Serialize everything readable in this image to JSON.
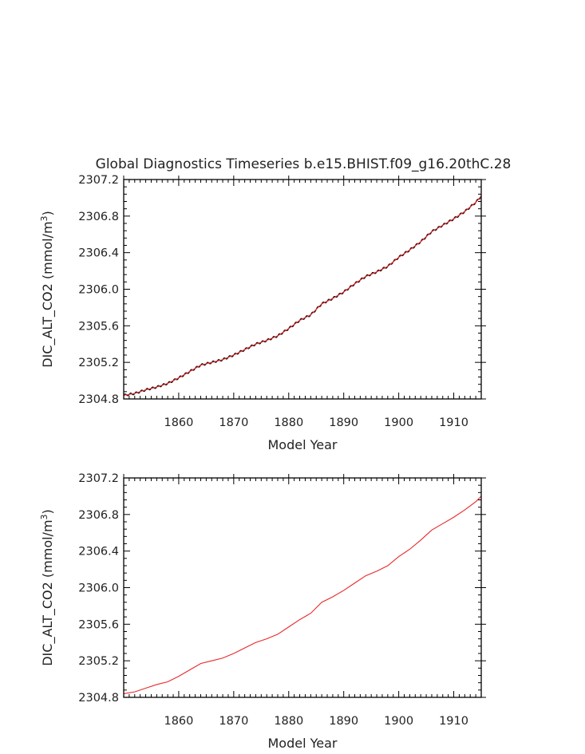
{
  "figure_title": "Global Diagnostics Timeseries b.e15.BHIST.f09_g16.20thC.28",
  "chart_data": [
    {
      "type": "line",
      "title": "Global Diagnostics Timeseries b.e15.BHIST.f09_g16.20thC.28",
      "xlabel": "Model Year",
      "ylabel": "DIC_ALT_CO2 (mmol/m3)",
      "ylabel_prefix": "DIC_ALT_CO2 (mmol/m",
      "ylabel_superscript": "3",
      "ylabel_suffix": ")",
      "xlim": [
        1850,
        1915
      ],
      "ylim": [
        2304.8,
        2307.2
      ],
      "x_ticks": [
        1860,
        1870,
        1880,
        1890,
        1900,
        1910
      ],
      "x_tick_labels": [
        "1860",
        "1870",
        "1880",
        "1890",
        "1900",
        "1910"
      ],
      "y_ticks": [
        2304.8,
        2305.2,
        2305.6,
        2306.0,
        2306.4,
        2306.8,
        2307.2
      ],
      "y_tick_labels": [
        "2304.8",
        "2305.2",
        "2305.6",
        "2306.0",
        "2306.4",
        "2306.8",
        "2307.2"
      ],
      "grid": false,
      "series": [
        {
          "color": "#000000",
          "style": "monthly",
          "x": [
            1850,
            1852,
            1854,
            1856,
            1858,
            1860,
            1862,
            1864,
            1866,
            1868,
            1870,
            1872,
            1874,
            1876,
            1878,
            1880,
            1882,
            1884,
            1886,
            1888,
            1890,
            1892,
            1894,
            1896,
            1898,
            1900,
            1902,
            1904,
            1906,
            1908,
            1910,
            1912,
            1914,
            1915
          ],
          "y": [
            2304.84,
            2304.86,
            2304.9,
            2304.93,
            2304.97,
            2305.03,
            2305.1,
            2305.17,
            2305.2,
            2305.23,
            2305.28,
            2305.34,
            2305.4,
            2305.44,
            2305.49,
            2305.57,
            2305.66,
            2305.72,
            2305.84,
            2305.9,
            2305.97,
            2306.06,
            2306.14,
            2306.19,
            2306.25,
            2306.35,
            2306.43,
            2306.52,
            2306.63,
            2306.7,
            2306.77,
            2306.85,
            2306.95,
            2307.02
          ]
        },
        {
          "color": "#e8282b",
          "style": "annual",
          "x": [
            1850,
            1852,
            1854,
            1856,
            1858,
            1860,
            1862,
            1864,
            1866,
            1868,
            1870,
            1872,
            1874,
            1876,
            1878,
            1880,
            1882,
            1884,
            1886,
            1888,
            1890,
            1892,
            1894,
            1896,
            1898,
            1900,
            1902,
            1904,
            1906,
            1908,
            1910,
            1912,
            1914,
            1915
          ],
          "y": [
            2304.84,
            2304.86,
            2304.9,
            2304.93,
            2304.97,
            2305.03,
            2305.1,
            2305.17,
            2305.2,
            2305.23,
            2305.28,
            2305.34,
            2305.4,
            2305.44,
            2305.49,
            2305.57,
            2305.66,
            2305.72,
            2305.84,
            2305.9,
            2305.97,
            2306.06,
            2306.14,
            2306.19,
            2306.25,
            2306.35,
            2306.43,
            2306.52,
            2306.63,
            2306.7,
            2306.77,
            2306.85,
            2306.95,
            2307.02
          ]
        }
      ]
    },
    {
      "type": "line",
      "xlabel": "Model Year",
      "ylabel": "DIC_ALT_CO2 (mmol/m3)",
      "ylabel_prefix": "DIC_ALT_CO2 (mmol/m",
      "ylabel_superscript": "3",
      "ylabel_suffix": ")",
      "xlim": [
        1850,
        1915
      ],
      "ylim": [
        2304.8,
        2307.2
      ],
      "x_ticks": [
        1860,
        1870,
        1880,
        1890,
        1900,
        1910
      ],
      "x_tick_labels": [
        "1860",
        "1870",
        "1880",
        "1890",
        "1900",
        "1910"
      ],
      "y_ticks": [
        2304.8,
        2305.2,
        2305.6,
        2306.0,
        2306.4,
        2306.8,
        2307.2
      ],
      "y_tick_labels": [
        "2304.8",
        "2305.2",
        "2305.6",
        "2306.0",
        "2306.4",
        "2306.8",
        "2307.2"
      ],
      "grid": false,
      "series": [
        {
          "color": "#e8282b",
          "style": "annual",
          "x": [
            1850,
            1852,
            1854,
            1856,
            1858,
            1860,
            1862,
            1864,
            1866,
            1868,
            1870,
            1872,
            1874,
            1876,
            1878,
            1880,
            1882,
            1884,
            1886,
            1888,
            1890,
            1892,
            1894,
            1896,
            1898,
            1900,
            1902,
            1904,
            1906,
            1908,
            1910,
            1912,
            1914,
            1915
          ],
          "y": [
            2304.84,
            2304.86,
            2304.9,
            2304.94,
            2304.97,
            2305.03,
            2305.1,
            2305.17,
            2305.2,
            2305.23,
            2305.28,
            2305.34,
            2305.4,
            2305.44,
            2305.49,
            2305.57,
            2305.65,
            2305.72,
            2305.84,
            2305.9,
            2305.97,
            2306.05,
            2306.13,
            2306.18,
            2306.24,
            2306.34,
            2306.42,
            2306.52,
            2306.63,
            2306.7,
            2306.77,
            2306.85,
            2306.94,
            2307.0
          ]
        }
      ]
    }
  ]
}
